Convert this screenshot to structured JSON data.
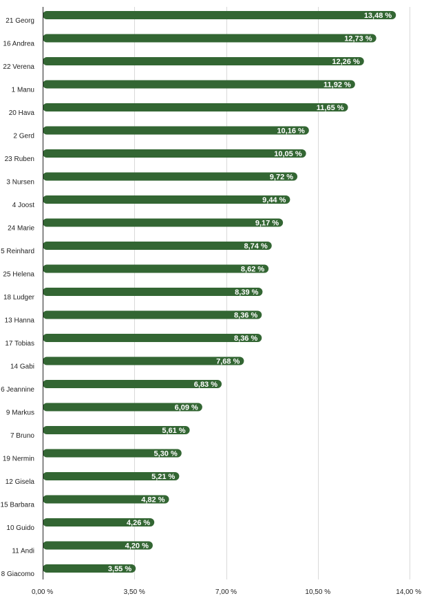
{
  "chart_data": {
    "type": "bar",
    "orientation": "horizontal",
    "categories": [
      "21 Georg",
      "16 Andrea",
      "22 Verena",
      "1 Manu",
      "20 Hava",
      "2 Gerd",
      "23 Ruben",
      "3 Nursen",
      "4 Joost",
      "24 Marie",
      "5 Reinhard",
      "25 Helena",
      "18 Ludger",
      "13 Hanna",
      "17 Tobias",
      "14 Gabi",
      "6 Jeannine",
      "9 Markus",
      "7 Bruno",
      "19 Nermin",
      "12 Gisela",
      "15 Barbara",
      "10 Guido",
      "11 Andi",
      "8 Giacomo"
    ],
    "values": [
      13.48,
      12.73,
      12.26,
      11.92,
      11.65,
      10.16,
      10.05,
      9.72,
      9.44,
      9.17,
      8.74,
      8.62,
      8.39,
      8.36,
      8.36,
      7.68,
      6.83,
      6.09,
      5.61,
      5.3,
      5.21,
      4.82,
      4.26,
      4.2,
      3.55
    ],
    "value_labels": [
      "13,48 %",
      "12,73 %",
      "12,26 %",
      "11,92 %",
      "11,65 %",
      "10,16 %",
      "10,05 %",
      "9,72 %",
      "9,44 %",
      "9,17 %",
      "8,74 %",
      "8,62 %",
      "8,39 %",
      "8,36 %",
      "8,36 %",
      "7,68 %",
      "6,83 %",
      "6,09 %",
      "5,61 %",
      "5,30 %",
      "5,21 %",
      "4,82 %",
      "4,26 %",
      "4,20 %",
      "3,55 %"
    ],
    "xlim": [
      0,
      14
    ],
    "x_ticks": [
      0,
      3.5,
      7,
      10.5,
      14
    ],
    "x_tick_labels": [
      "0,00 %",
      "3,50 %",
      "7,00 %",
      "10,50 %",
      "14,00 %"
    ],
    "grid": "vertical",
    "bar_color": "#336633",
    "title": "",
    "xlabel": "",
    "ylabel": ""
  }
}
